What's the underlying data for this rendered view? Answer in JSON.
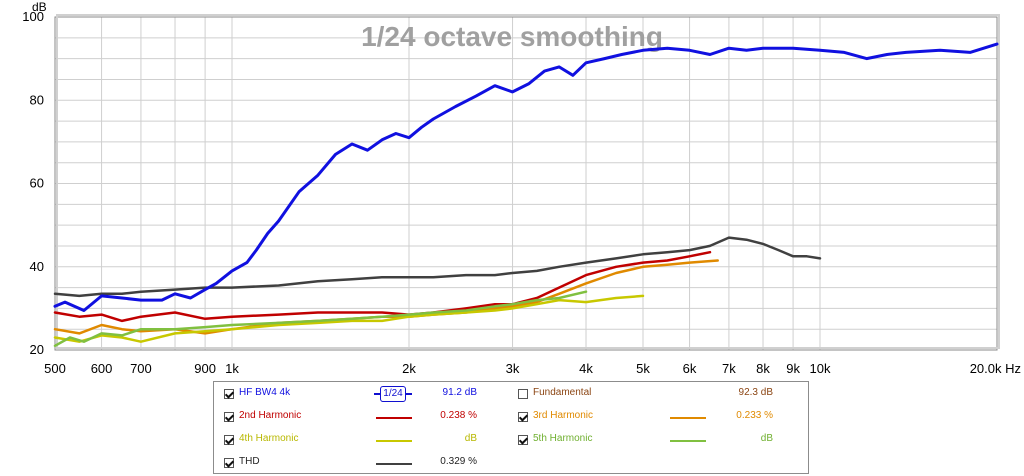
{
  "chart_data": {
    "type": "line",
    "title": "1/24 octave smoothing",
    "ylabel": "dB",
    "xlabel": "Hz",
    "x_scale": "log",
    "xlim": [
      500,
      20000
    ],
    "ylim": [
      20,
      100
    ],
    "grid": true,
    "y_ticks": [
      "20",
      "40",
      "60",
      "80",
      "100"
    ],
    "x_ticks": [
      {
        "v": 500,
        "label": "500"
      },
      {
        "v": 600,
        "label": "600"
      },
      {
        "v": 700,
        "label": "700"
      },
      {
        "v": 900,
        "label": "900"
      },
      {
        "v": 1000,
        "label": "1k"
      },
      {
        "v": 2000,
        "label": "2k"
      },
      {
        "v": 3000,
        "label": "3k"
      },
      {
        "v": 4000,
        "label": "4k"
      },
      {
        "v": 5000,
        "label": "5k"
      },
      {
        "v": 6000,
        "label": "6k"
      },
      {
        "v": 7000,
        "label": "7k"
      },
      {
        "v": 8000,
        "label": "8k"
      },
      {
        "v": 9000,
        "label": "9k"
      },
      {
        "v": 10000,
        "label": "10k"
      },
      {
        "v": 20000,
        "label": "20.0k Hz"
      }
    ],
    "series": [
      {
        "name": "HF BW4 4k",
        "color": "#1010e0",
        "x": [
          500,
          520,
          560,
          600,
          650,
          700,
          760,
          800,
          850,
          900,
          940,
          1000,
          1060,
          1100,
          1150,
          1200,
          1300,
          1400,
          1500,
          1600,
          1700,
          1800,
          1900,
          2000,
          2100,
          2200,
          2400,
          2600,
          2800,
          3000,
          3200,
          3400,
          3600,
          3800,
          4000,
          4300,
          4600,
          5000,
          5500,
          6000,
          6500,
          7000,
          7500,
          8000,
          9000,
          10000,
          11000,
          12000,
          13000,
          14000,
          16000,
          18000,
          20000
        ],
        "y": [
          30.5,
          31.5,
          29.5,
          33,
          32.5,
          32,
          32,
          33.5,
          32.5,
          34.5,
          36,
          39,
          41,
          44,
          48,
          51,
          58,
          62,
          67,
          69.5,
          68,
          70.5,
          72,
          71,
          73.5,
          75.5,
          78.5,
          81,
          83.5,
          82,
          84,
          87,
          88,
          86,
          89,
          90,
          91,
          92,
          92.5,
          92,
          91,
          92.5,
          92,
          92.5,
          92.5,
          92,
          91.5,
          90,
          91,
          91.5,
          92,
          91.5,
          93.5
        ]
      },
      {
        "name": "2nd Harmonic",
        "color": "#c00000",
        "x": [
          500,
          550,
          600,
          650,
          700,
          800,
          900,
          1000,
          1200,
          1400,
          1600,
          1800,
          2000,
          2200,
          2500,
          2800,
          3000,
          3300,
          3600,
          4000,
          4500,
          5000,
          5500,
          6000,
          6500
        ],
        "y": [
          29,
          28,
          28.5,
          27,
          28,
          29,
          27.5,
          28,
          28.5,
          29,
          29,
          29,
          28.5,
          29,
          30,
          31,
          31,
          32.5,
          35,
          38,
          40,
          41,
          41.5,
          42.5,
          43.5
        ]
      },
      {
        "name": "3rd Harmonic",
        "color": "#e08a00",
        "x": [
          500,
          550,
          600,
          650,
          700,
          800,
          900,
          1000,
          1200,
          1400,
          1600,
          1800,
          2000,
          2200,
          2500,
          2800,
          3000,
          3300,
          3600,
          4000,
          4500,
          5000,
          5500,
          6000,
          6700
        ],
        "y": [
          25,
          24,
          26,
          25,
          24.5,
          25,
          24,
          25,
          26.5,
          27,
          27.5,
          28,
          28,
          28.5,
          29,
          30,
          30.5,
          31.5,
          33.5,
          36,
          38.5,
          40,
          40.5,
          41,
          41.5
        ]
      },
      {
        "name": "4th Harmonic",
        "color": "#c8c800",
        "x": [
          500,
          550,
          600,
          650,
          700,
          800,
          900,
          1000,
          1200,
          1400,
          1600,
          1800,
          2000,
          2200,
          2500,
          2800,
          3000,
          3300,
          3600,
          4000,
          4500,
          5000
        ],
        "y": [
          23,
          22,
          23.5,
          23,
          22,
          24,
          24.5,
          25,
          26,
          26.5,
          27,
          27,
          28,
          28.5,
          29,
          29.5,
          30,
          31,
          32,
          31.5,
          32.5,
          33
        ]
      },
      {
        "name": "5th Harmonic",
        "color": "#80c040",
        "x": [
          500,
          530,
          560,
          600,
          650,
          700,
          800,
          900,
          1000,
          1200,
          1400,
          1600,
          1800,
          2000,
          2200,
          2500,
          2800,
          3000,
          3300,
          3600,
          4000
        ],
        "y": [
          21,
          23,
          22,
          24,
          23.5,
          25,
          25,
          25.5,
          26,
          26.5,
          27,
          27.5,
          28,
          28.5,
          29,
          29.5,
          30.5,
          31,
          32,
          32.5,
          34
        ]
      },
      {
        "name": "THD",
        "color": "#404040",
        "x": [
          500,
          550,
          600,
          650,
          700,
          800,
          900,
          1000,
          1200,
          1400,
          1600,
          1800,
          2000,
          2200,
          2500,
          2800,
          3000,
          3300,
          3600,
          4000,
          4500,
          5000,
          5500,
          6000,
          6500,
          7000,
          7500,
          8000,
          8500,
          9000,
          9500,
          10000
        ],
        "y": [
          33.5,
          33,
          33.5,
          33.5,
          34,
          34.5,
          35,
          35,
          35.5,
          36.5,
          37,
          37.5,
          37.5,
          37.5,
          38,
          38,
          38.5,
          39,
          40,
          41,
          42,
          43,
          43.5,
          44,
          45,
          47,
          46.5,
          45.5,
          44,
          42.5,
          42.5,
          42
        ]
      }
    ]
  },
  "legend": {
    "rows": [
      {
        "left": {
          "name": "HF BW4 4k",
          "checked": "true",
          "color": "#1010e0",
          "smoothing": "1/24",
          "value": "91.2 dB"
        },
        "right": {
          "name": "Fundamental",
          "checked": "false",
          "color": "#8b4513",
          "value": "92.3 dB"
        }
      },
      {
        "left": {
          "name": "2nd Harmonic",
          "checked": "true",
          "color": "#c00000",
          "value": "0.238 %"
        },
        "right": {
          "name": "3rd Harmonic",
          "checked": "true",
          "color": "#e08a00",
          "value": "0.233 %"
        }
      },
      {
        "left": {
          "name": "4th Harmonic",
          "checked": "true",
          "color": "#c8c800",
          "value": "dB"
        },
        "right": {
          "name": "5th Harmonic",
          "checked": "true",
          "color": "#80c040",
          "value": "dB"
        }
      },
      {
        "left": {
          "name": "THD",
          "checked": "true",
          "color": "#404040",
          "value": "0.329 %"
        }
      }
    ]
  }
}
